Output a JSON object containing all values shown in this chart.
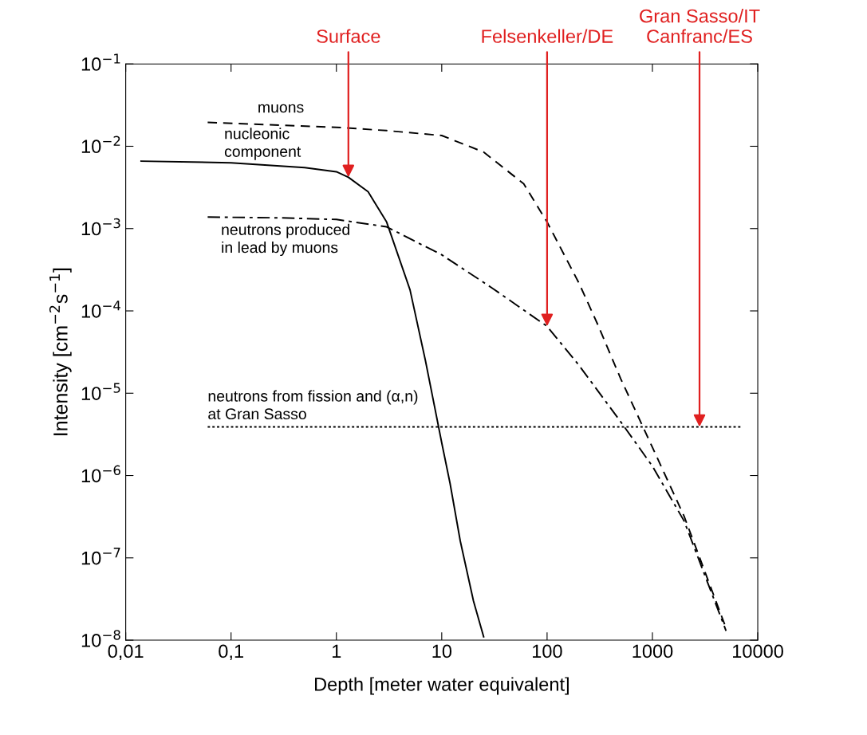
{
  "chart_data": {
    "type": "line",
    "xlabel": "Depth [meter water equivalent]",
    "ylabel": "Intensity [cm$^{−2}$s$^{−1}$]",
    "log": "xy",
    "grid": false,
    "legend": false,
    "xlim": [
      0.01,
      10000
    ],
    "ylim": [
      1e-08,
      0.1
    ],
    "xticks": [
      {
        "value": 0.01,
        "label": "0,01"
      },
      {
        "value": 0.1,
        "label": "0,1"
      },
      1,
      10,
      100,
      1000,
      10000
    ],
    "yticks": [
      {
        "value": 1e-08,
        "label": "10$^{−8}$"
      },
      {
        "value": 1e-07,
        "label": "10$^{−7}$"
      },
      {
        "value": 1e-06,
        "label": "10$^{−6}$"
      },
      {
        "value": 1e-05,
        "label": "10$^{−5}$"
      },
      {
        "value": 0.0001,
        "label": "10$^{−4}$"
      },
      {
        "value": 0.001,
        "label": "10$^{−3}$"
      },
      {
        "value": 0.01,
        "label": "10$^{−2}$"
      },
      {
        "value": 0.1,
        "label": "10$^{−1}$"
      }
    ],
    "series": [
      {
        "name": "muons",
        "color": "#000000",
        "line_style": "dashed",
        "x": [
          0.06,
          0.3,
          1,
          3,
          10,
          25,
          60,
          100,
          200,
          300,
          500,
          1000,
          2000,
          5000
        ],
        "values": [
          0.0195,
          0.018,
          0.017,
          0.0155,
          0.0135,
          0.0085,
          0.0035,
          0.0012,
          0.00022,
          7e-05,
          1.5e-05,
          2.2e-06,
          3.2e-07,
          1.4e-08
        ]
      },
      {
        "name": "nucleonic\ncomponent",
        "color": "#000000",
        "line_style": "solid",
        "x": [
          0.014,
          0.1,
          0.5,
          1,
          1.3,
          2,
          3,
          5,
          7,
          10,
          12,
          15,
          20,
          25
        ],
        "values": [
          0.0066,
          0.0063,
          0.0055,
          0.0049,
          0.0042,
          0.0028,
          0.0012,
          0.00018,
          2.5e-05,
          2.5e-06,
          8e-07,
          1.6e-07,
          3e-08,
          1.1e-08
        ]
      },
      {
        "name": "neutrons produced\nin lead by muons",
        "color": "#000000",
        "line_style": "dashdot",
        "x": [
          0.06,
          0.3,
          1,
          3,
          10,
          30,
          100,
          200,
          500,
          1000,
          2000,
          5000
        ],
        "values": [
          0.00138,
          0.00135,
          0.00129,
          0.00105,
          0.00048,
          0.00019,
          6.5e-05,
          2.2e-05,
          4.5e-06,
          1.3e-06,
          2.8e-07,
          1.3e-08
        ]
      },
      {
        "name": "neutrons from fission and (α,n)\nat Gran Sasso",
        "color": "#000000",
        "line_style": "dotted",
        "x": [
          0.06,
          2800,
          7000
        ],
        "values": [
          3.9e-06,
          3.9e-06,
          3.9e-06
        ]
      }
    ],
    "annotations": [
      {
        "text": "Surface",
        "x": 1.3,
        "y": 0.0042
      },
      {
        "text": "Felsenkeller/DE",
        "x": 100,
        "y": 6.5e-05
      },
      {
        "text": "Gran Sasso/IT\nCanfranc/ES",
        "x": 2800,
        "y": 3.9e-06
      }
    ]
  }
}
